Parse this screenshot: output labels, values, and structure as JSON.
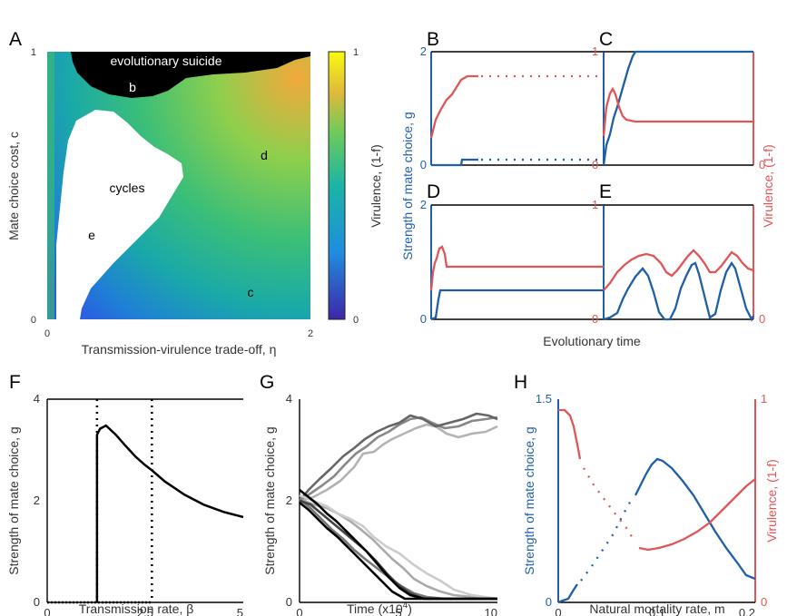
{
  "colors": {
    "blue": "#1f5fa8",
    "red": "#e05555",
    "black": "#000000"
  },
  "panels": {
    "A": "A",
    "B": "B",
    "C": "C",
    "D": "D",
    "E": "E",
    "F": "F",
    "G": "G",
    "H": "H"
  },
  "chart_data": [
    {
      "panel": "A",
      "type": "heatmap",
      "xlabel": "Transmission-virulence trade-off, η",
      "ylabel": "Mate choice cost, c",
      "xlim": [
        0,
        2
      ],
      "ylim": [
        0,
        1
      ],
      "xticks": [
        "0",
        "2"
      ],
      "yticks": [
        "0",
        "1"
      ],
      "colorbar": {
        "label": "Virulence, (1-f)",
        "range": [
          0,
          1
        ],
        "ticks": [
          "0",
          "1"
        ],
        "colormap": "parula"
      },
      "annotations": [
        "evolutionary suicide",
        "cycles",
        "b",
        "c",
        "d",
        "e"
      ]
    },
    {
      "panels": [
        "B",
        "C",
        "D",
        "E"
      ],
      "type": "line",
      "ylabel_left": "Strength of mate choice, g",
      "ylabel_right": "Virulence, (1-f)",
      "xlabel": "Evolutionary time",
      "ylim_left": [
        0,
        2
      ],
      "ylim_right": [
        0,
        1
      ],
      "yticks_left": [
        "0",
        "2"
      ],
      "yticks_right": [
        "0",
        "1"
      ],
      "series": [
        {
          "name": "Strength of mate choice, g",
          "color": "#1f5fa8"
        },
        {
          "name": "Virulence, (1-f)",
          "color": "#e05555"
        }
      ]
    },
    {
      "panel": "F",
      "type": "line",
      "xlabel": "Transmission rate, β",
      "ylabel": "Strength of mate choice, g",
      "xlim": [
        0,
        5
      ],
      "ylim": [
        0,
        4
      ],
      "xticks": [
        "0",
        "2.5",
        "5"
      ],
      "yticks": [
        "0",
        "2",
        "4"
      ],
      "vlines": [
        1.27,
        2.67
      ],
      "x": [
        1.35,
        1.5,
        1.75,
        2.0,
        2.25,
        2.5,
        2.67,
        3.0,
        3.5,
        4.0,
        4.5,
        5.0
      ],
      "values": [
        3.42,
        3.48,
        3.3,
        3.08,
        2.87,
        2.7,
        2.6,
        2.38,
        2.12,
        1.92,
        1.78,
        1.68
      ]
    },
    {
      "panel": "G",
      "type": "line",
      "xlabel": "Time (x10",
      "xlabel_exp": "4",
      "xlabel_close": ")",
      "ylabel": "Strength of mate choice, g",
      "xlim": [
        0,
        10
      ],
      "ylim": [
        0,
        4
      ],
      "xticks": [
        "0",
        "5",
        "10"
      ],
      "yticks": [
        "0",
        "2",
        "4"
      ]
    },
    {
      "panel": "H",
      "type": "line",
      "xlabel": "Natural mortality rate, m",
      "ylabel_left": "Strength of mate choice, g",
      "ylabel_right": "Virulence, (1-f)",
      "xlim": [
        0,
        0.2
      ],
      "ylim_left": [
        0,
        1.5
      ],
      "ylim_right": [
        0,
        1
      ],
      "xticks": [
        "0",
        "0.1",
        "0.2"
      ],
      "yticks_left": [
        "0",
        "1.5"
      ],
      "yticks_right": [
        "0",
        "1"
      ],
      "series": [
        {
          "name": "Strength of mate choice, g",
          "color": "#1f5fa8"
        },
        {
          "name": "Virulence, (1-f)",
          "color": "#e05555"
        }
      ]
    }
  ]
}
